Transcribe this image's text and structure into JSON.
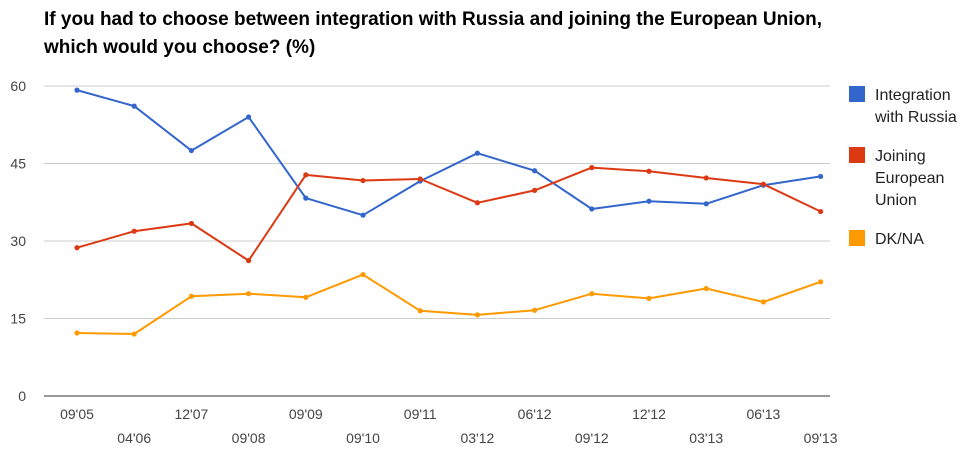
{
  "chart_data": {
    "type": "line",
    "title": "If you had to choose between integration with Russia and joining the European Union, which would you choose? (%)",
    "xlabel": "",
    "ylabel": "",
    "ylim": [
      0,
      60
    ],
    "yticks": [
      0,
      15,
      30,
      45,
      60
    ],
    "grid": true,
    "legend_position": "right",
    "categories": [
      "09'05",
      "04'06",
      "12'07",
      "09'08",
      "09'09",
      "09'10",
      "09'11",
      "03'12",
      "06'12",
      "09'12",
      "12'12",
      "03'13",
      "06'13",
      "09'13"
    ],
    "series": [
      {
        "name": "Integration with Russia",
        "legend_lines": [
          "Integration",
          "with Russia"
        ],
        "color": "#3366cc",
        "values": [
          59.2,
          56.1,
          47.5,
          54.0,
          38.3,
          35.0,
          41.6,
          47.0,
          43.6,
          36.2,
          37.7,
          37.2,
          40.8,
          42.5
        ]
      },
      {
        "name": "Joining European Union",
        "legend_lines": [
          "Joining",
          "European",
          "Union"
        ],
        "color": "#dc3912",
        "values": [
          28.7,
          31.9,
          33.4,
          26.2,
          42.8,
          41.7,
          42.0,
          37.4,
          39.8,
          44.2,
          43.5,
          42.2,
          41.0,
          35.7
        ]
      },
      {
        "name": "DK/NA",
        "legend_lines": [
          "DK/NA"
        ],
        "color": "#ff9900",
        "values": [
          12.2,
          12.0,
          19.3,
          19.8,
          19.1,
          23.5,
          16.5,
          15.7,
          16.6,
          19.8,
          18.9,
          20.8,
          18.2,
          22.1
        ]
      }
    ]
  }
}
